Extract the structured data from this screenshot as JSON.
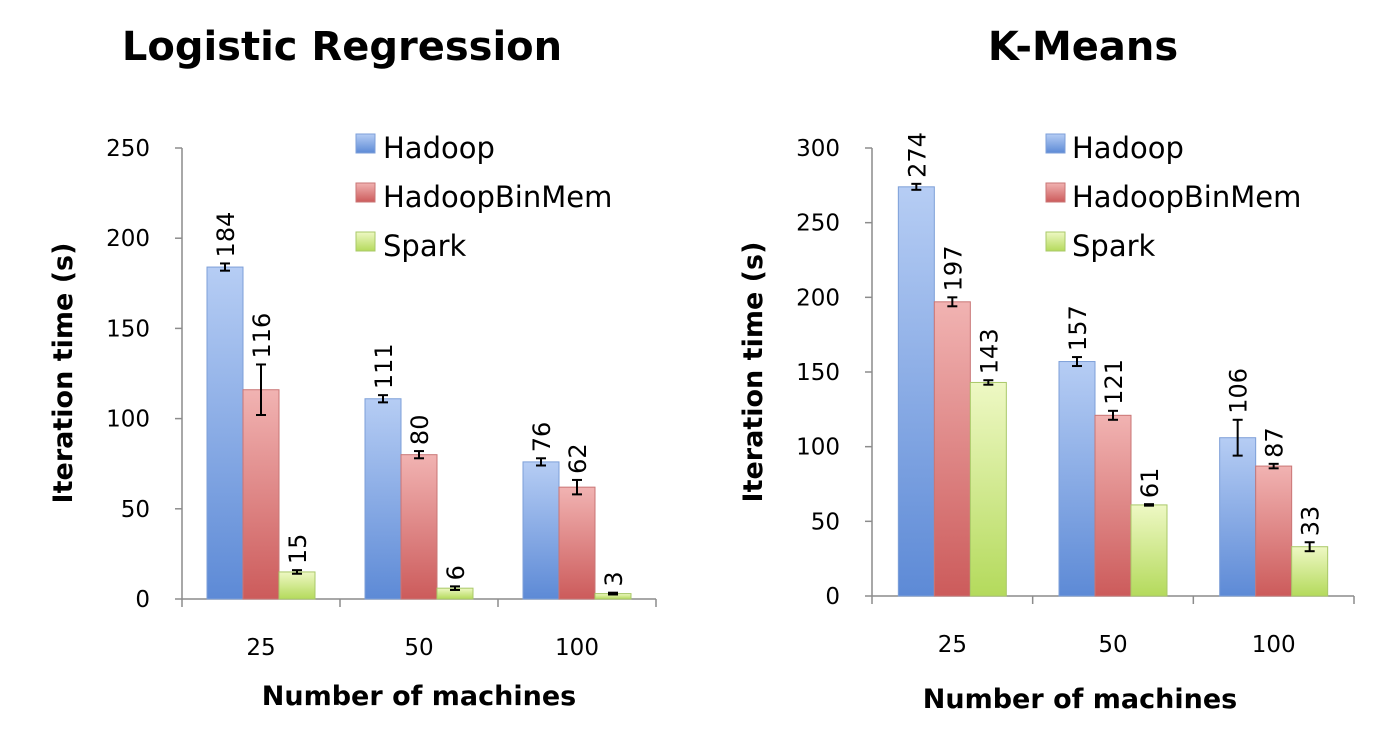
{
  "colors": {
    "hadoop": {
      "light": "#b6cdf4",
      "dark": "#5d8ad6",
      "edge": "#7d9fd8"
    },
    "hadoopbinmem": {
      "light": "#f1b3b2",
      "dark": "#cc5b5b",
      "edge": "#c97575"
    },
    "spark": {
      "light": "#eef8c4",
      "dark": "#b4da5c",
      "edge": "#a9c868"
    },
    "axis": "#8c8c8c",
    "error_bar": "#000000"
  },
  "chart_data": [
    {
      "type": "bar",
      "title": "Logistic Regression",
      "xlabel": "Number of machines",
      "ylabel": "Iteration time (s)",
      "categories": [
        "25",
        "50",
        "100"
      ],
      "ylim": [
        0,
        250
      ],
      "yticks": [
        0,
        50,
        100,
        150,
        200,
        250
      ],
      "legend_position": "top-right",
      "grid": false,
      "series": [
        {
          "name": "Hadoop",
          "color_key": "hadoop",
          "values": [
            184,
            111,
            76
          ],
          "labels": [
            "184",
            "111",
            "76"
          ],
          "error": [
            2,
            2,
            2
          ]
        },
        {
          "name": "HadoopBinMem",
          "color_key": "hadoopbinmem",
          "values": [
            116,
            80,
            62
          ],
          "labels": [
            "116",
            "80",
            "62"
          ],
          "error": [
            14,
            2,
            4
          ]
        },
        {
          "name": "Spark",
          "color_key": "spark",
          "values": [
            15,
            6,
            3
          ],
          "labels": [
            "15",
            "6",
            "3"
          ],
          "error": [
            1,
            1,
            0.5
          ]
        }
      ]
    },
    {
      "type": "bar",
      "title": "K-Means",
      "xlabel": "Number of machines",
      "ylabel": "Iteration time (s)",
      "categories": [
        "25",
        "50",
        "100"
      ],
      "ylim": [
        0,
        300
      ],
      "yticks": [
        0,
        50,
        100,
        150,
        200,
        250,
        300
      ],
      "legend_position": "top-right",
      "grid": false,
      "series": [
        {
          "name": "Hadoop",
          "color_key": "hadoop",
          "values": [
            274,
            157,
            106
          ],
          "labels": [
            "274",
            "157",
            "106"
          ],
          "error": [
            2,
            3,
            12
          ]
        },
        {
          "name": "HadoopBinMem",
          "color_key": "hadoopbinmem",
          "values": [
            197,
            121,
            87
          ],
          "labels": [
            "197",
            "121",
            "87"
          ],
          "error": [
            3,
            3,
            1.5
          ]
        },
        {
          "name": "Spark",
          "color_key": "spark",
          "values": [
            143,
            61,
            33
          ],
          "labels": [
            "143",
            "61",
            "33"
          ],
          "error": [
            1.5,
            0.5,
            3
          ]
        }
      ]
    }
  ]
}
